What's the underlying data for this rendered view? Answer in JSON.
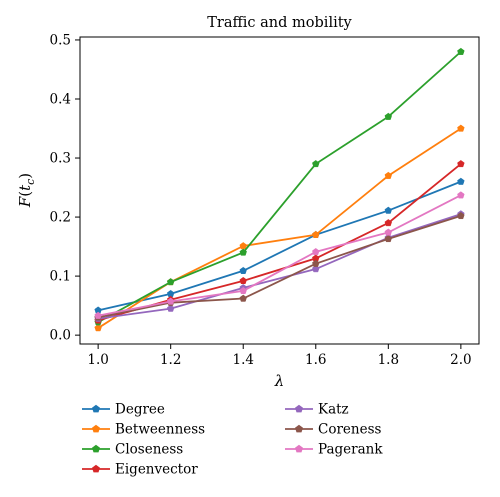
{
  "chart_data": {
    "type": "line",
    "title": "Traffic and mobility",
    "xlabel": "λ",
    "ylabel": "F(t_c)",
    "ylabel_main": "F",
    "ylabel_open": "(",
    "ylabel_t": "t",
    "ylabel_sub": "c",
    "ylabel_close": ")",
    "xlim": [
      0.95,
      2.05
    ],
    "ylim": [
      -0.015,
      0.505
    ],
    "x": [
      1.0,
      1.2,
      1.4,
      1.6,
      1.8,
      2.0
    ],
    "x_ticks": [
      "1.0",
      "1.2",
      "1.4",
      "1.6",
      "1.8",
      "2.0"
    ],
    "y_ticks_values": [
      0.0,
      0.1,
      0.2,
      0.3,
      0.4,
      0.5
    ],
    "y_ticks": [
      "0.0",
      "0.1",
      "0.2",
      "0.3",
      "0.4",
      "0.5"
    ],
    "grid": false,
    "legend_position": "below",
    "series": [
      {
        "name": "Degree",
        "color": "#1f77b4",
        "values": [
          0.042,
          0.07,
          0.109,
          0.17,
          0.211,
          0.26
        ]
      },
      {
        "name": "Betweenness",
        "color": "#ff7f0e",
        "values": [
          0.012,
          0.09,
          0.151,
          0.17,
          0.27,
          0.35
        ]
      },
      {
        "name": "Closeness",
        "color": "#2ca02c",
        "values": [
          0.022,
          0.09,
          0.14,
          0.29,
          0.37,
          0.48
        ]
      },
      {
        "name": "Eigenvector",
        "color": "#d62728",
        "values": [
          0.025,
          0.06,
          0.092,
          0.13,
          0.19,
          0.29
        ]
      },
      {
        "name": "Katz",
        "color": "#9467bd",
        "values": [
          0.028,
          0.045,
          0.08,
          0.112,
          0.165,
          0.205
        ]
      },
      {
        "name": "Coreness",
        "color": "#8c564b",
        "values": [
          0.03,
          0.055,
          0.062,
          0.121,
          0.163,
          0.202
        ]
      },
      {
        "name": "Pagerank",
        "color": "#e377c2",
        "values": [
          0.033,
          0.057,
          0.075,
          0.141,
          0.174,
          0.237
        ]
      }
    ]
  }
}
